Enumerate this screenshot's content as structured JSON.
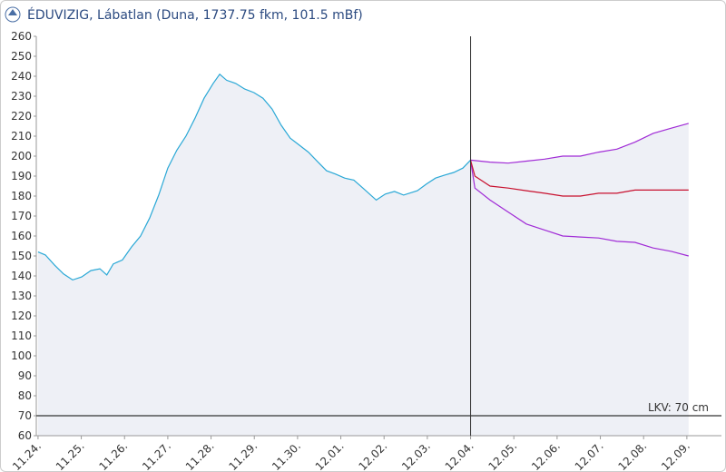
{
  "chart_data": {
    "type": "line",
    "title": "ÉDUVIZIG, Lábatlan (Duna, 1737.75 fkm, 101.5 mBf)",
    "ylim": [
      60,
      260
    ],
    "yticks": [
      60,
      70,
      80,
      90,
      100,
      110,
      120,
      130,
      140,
      150,
      160,
      170,
      180,
      190,
      200,
      210,
      220,
      230,
      240,
      250,
      260
    ],
    "xlim": [
      -0.04,
      15.8
    ],
    "xticks": [
      {
        "value": 0,
        "label": "11.24."
      },
      {
        "value": 1,
        "label": "11.25."
      },
      {
        "value": 2,
        "label": "11.26."
      },
      {
        "value": 3,
        "label": "11.27."
      },
      {
        "value": 4,
        "label": "11.28."
      },
      {
        "value": 5,
        "label": "11.29."
      },
      {
        "value": 6,
        "label": "11.30."
      },
      {
        "value": 7,
        "label": "12.01."
      },
      {
        "value": 8,
        "label": "12.02."
      },
      {
        "value": 9,
        "label": "12.03."
      },
      {
        "value": 10,
        "label": "12.04."
      },
      {
        "value": 11,
        "label": "12.05."
      },
      {
        "value": 12,
        "label": "12.06."
      },
      {
        "value": 13,
        "label": "12.07."
      },
      {
        "value": 14,
        "label": "12.08."
      },
      {
        "value": 15,
        "label": "12.09."
      }
    ],
    "grid": false,
    "marker_x": 10,
    "reference": {
      "value": 70,
      "label": "LKV: 70 cm"
    },
    "series": [
      {
        "color": "#2aa8d6",
        "fill": "#eef0f6",
        "x": [
          0,
          0.17,
          0.38,
          0.59,
          0.8,
          1.01,
          1.22,
          1.43,
          1.59,
          1.74,
          1.95,
          2.16,
          2.37,
          2.58,
          2.79,
          3.0,
          3.21,
          3.42,
          3.63,
          3.84,
          4.05,
          4.2,
          4.36,
          4.57,
          4.78,
          4.99,
          5.2,
          5.41,
          5.62,
          5.83,
          6.04,
          6.25,
          6.46,
          6.67,
          6.88,
          7.09,
          7.3,
          7.51,
          7.82,
          8.03,
          8.24,
          8.45,
          8.77,
          8.98,
          9.19,
          9.4,
          9.61,
          9.82,
          10
        ],
        "values": [
          152,
          150.5,
          145.5,
          141,
          138,
          139.5,
          142.7,
          143.6,
          140.5,
          146,
          148,
          154.5,
          160,
          169,
          180.5,
          194,
          203,
          210,
          219,
          229,
          236.4,
          241,
          238,
          236.4,
          233.6,
          231.8,
          229,
          223.6,
          215.5,
          209,
          205.5,
          202,
          197.3,
          192.7,
          191,
          189,
          188,
          184,
          178,
          181,
          182.3,
          180.5,
          182.7,
          186,
          189,
          190.5,
          191.8,
          194,
          198
        ]
      },
      {
        "color": "#a02bd6",
        "fill": "#eef0f6",
        "x": [
          10,
          10.45,
          10.87,
          11.29,
          11.71,
          12.13,
          12.54,
          12.96,
          13.38,
          13.8,
          14.22,
          14.64,
          15.04
        ],
        "values": [
          198,
          197,
          196.5,
          197.5,
          198.5,
          200,
          200,
          202,
          203.5,
          207,
          211.4,
          214,
          216.4
        ]
      },
      {
        "color": "#a02bd6",
        "x": [
          10,
          10.1,
          10.45,
          10.87,
          11.29,
          11.71,
          12.13,
          12.54,
          12.96,
          13.38,
          13.8,
          14.22,
          14.64,
          15.04
        ],
        "values": [
          198,
          184,
          178,
          172,
          166,
          163,
          160,
          159.5,
          159,
          157.3,
          156.8,
          154,
          152.3,
          150
        ]
      },
      {
        "color": "#c8102e",
        "x": [
          10,
          10.1,
          10.45,
          10.87,
          11.29,
          11.71,
          12.13,
          12.54,
          12.96,
          13.38,
          13.8,
          15.04
        ],
        "values": [
          198,
          190,
          185,
          184,
          182.7,
          181.4,
          180,
          180,
          181.4,
          181.4,
          183,
          183
        ]
      }
    ]
  }
}
